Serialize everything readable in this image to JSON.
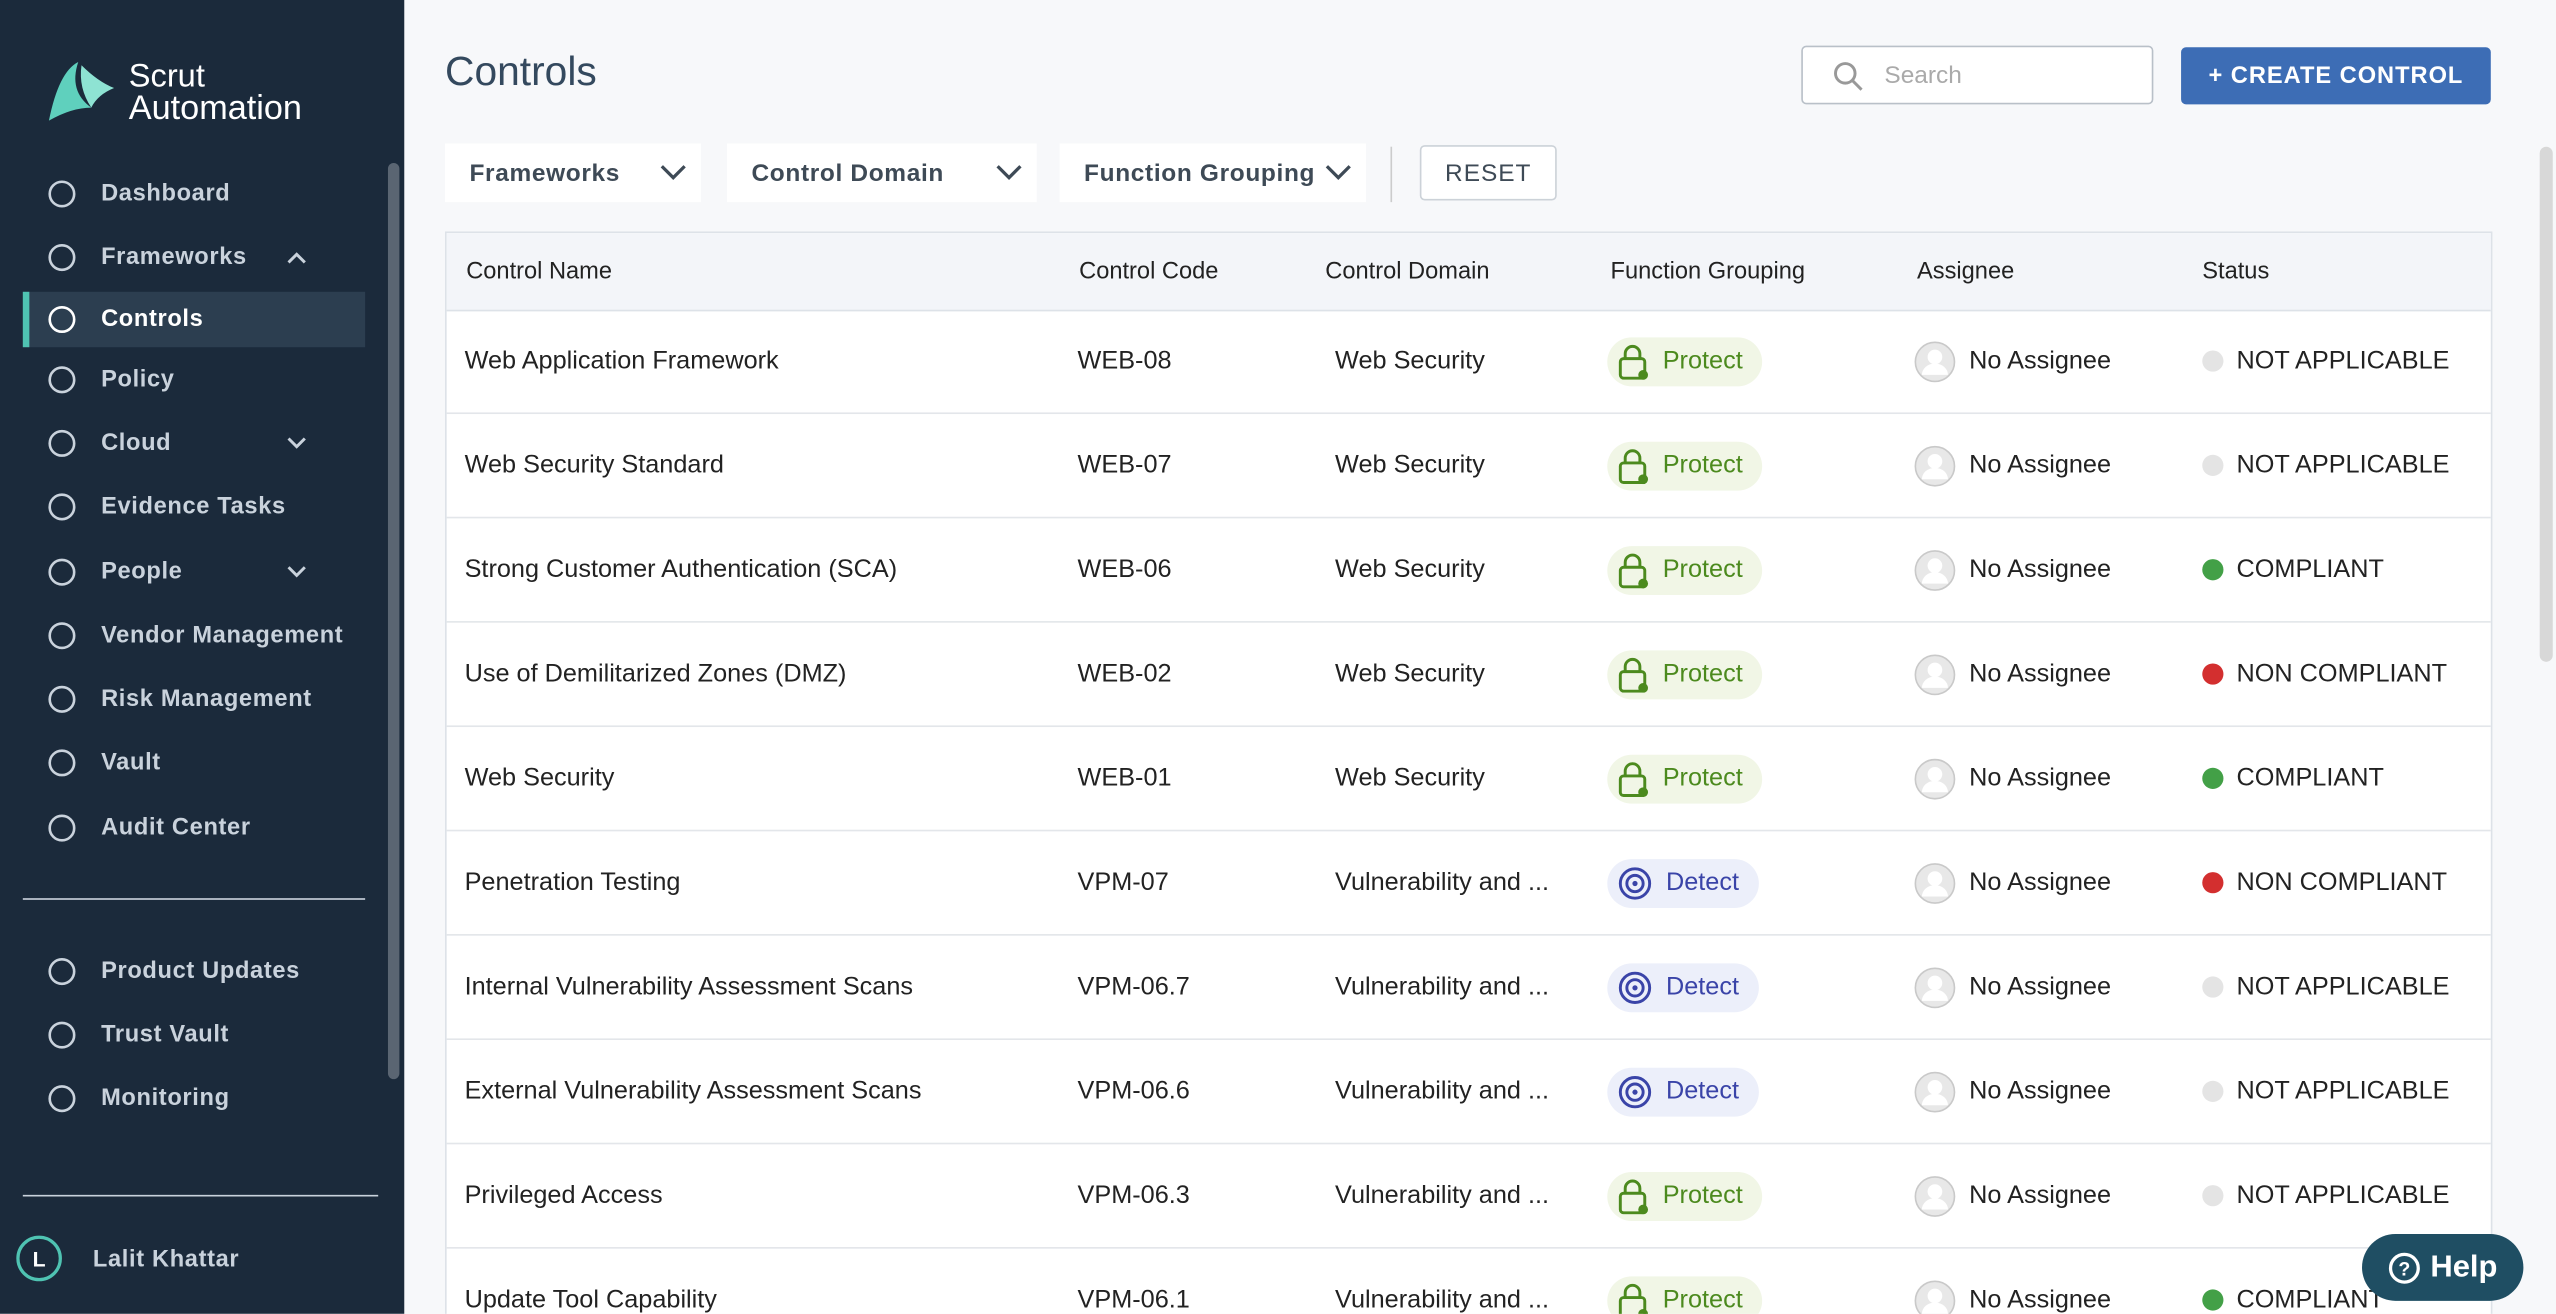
{
  "sidebar": {
    "brand": [
      "Scrut",
      "Automation"
    ],
    "nav": [
      {
        "label": "Dashboard"
      },
      {
        "label": "Frameworks",
        "chevron": "up"
      },
      {
        "label": "Controls",
        "active": true
      },
      {
        "label": "Policy"
      },
      {
        "label": "Cloud",
        "chevron": "down"
      },
      {
        "label": "Evidence Tasks"
      },
      {
        "label": "People",
        "chevron": "down"
      },
      {
        "label": "Vendor Management"
      },
      {
        "label": "Risk Management"
      },
      {
        "label": "Vault"
      },
      {
        "label": "Audit Center"
      }
    ],
    "secondary": [
      {
        "label": "Product Updates"
      },
      {
        "label": "Trust Vault"
      },
      {
        "label": "Monitoring"
      }
    ],
    "user": {
      "initial": "L",
      "name": "Lalit Khattar"
    }
  },
  "header": {
    "title": "Controls",
    "search_placeholder": "Search",
    "create_button": "+ CREATE CONTROL"
  },
  "filters": {
    "items": [
      "Frameworks",
      "Control Domain",
      "Function Grouping"
    ],
    "reset": "RESET"
  },
  "table": {
    "columns": [
      "Control Name",
      "Control Code",
      "Control Domain",
      "Function Grouping",
      "Assignee",
      "Status"
    ],
    "rows": [
      {
        "name": "Web Application Framework",
        "code": "WEB-08",
        "domain": "Web Security",
        "group": "Protect",
        "icon": "lock",
        "assignee": "No Assignee",
        "status": "NOT APPLICABLE",
        "status_color": "#e4e4e4"
      },
      {
        "name": "Web Security Standard",
        "code": "WEB-07",
        "domain": "Web Security",
        "group": "Protect",
        "icon": "lock",
        "assignee": "No Assignee",
        "status": "NOT APPLICABLE",
        "status_color": "#e4e4e4"
      },
      {
        "name": "Strong Customer Authentication (SCA)",
        "code": "WEB-06",
        "domain": "Web Security",
        "group": "Protect",
        "icon": "lock",
        "assignee": "No Assignee",
        "status": "COMPLIANT",
        "status_color": "#43a047"
      },
      {
        "name": "Use of Demilitarized Zones (DMZ)",
        "code": "WEB-02",
        "domain": "Web Security",
        "group": "Protect",
        "icon": "lock",
        "assignee": "No Assignee",
        "status": "NON COMPLIANT",
        "status_color": "#d32f2f"
      },
      {
        "name": "Web Security",
        "code": "WEB-01",
        "domain": "Web Security",
        "group": "Protect",
        "icon": "lock",
        "assignee": "No Assignee",
        "status": "COMPLIANT",
        "status_color": "#43a047"
      },
      {
        "name": "Penetration Testing",
        "code": "VPM-07",
        "domain": "Vulnerability and ...",
        "group": "Detect",
        "icon": "target",
        "assignee": "No Assignee",
        "status": "NON COMPLIANT",
        "status_color": "#d32f2f"
      },
      {
        "name": "Internal Vulnerability Assessment Scans",
        "code": "VPM-06.7",
        "domain": "Vulnerability and ...",
        "group": "Detect",
        "icon": "target",
        "assignee": "No Assignee",
        "status": "NOT APPLICABLE",
        "status_color": "#e4e4e4"
      },
      {
        "name": "External Vulnerability Assessment Scans",
        "code": "VPM-06.6",
        "domain": "Vulnerability and ...",
        "group": "Detect",
        "icon": "target",
        "assignee": "No Assignee",
        "status": "NOT APPLICABLE",
        "status_color": "#e4e4e4"
      },
      {
        "name": "Privileged Access",
        "code": "VPM-06.3",
        "domain": "Vulnerability and ...",
        "group": "Protect",
        "icon": "lock",
        "assignee": "No Assignee",
        "status": "NOT APPLICABLE",
        "status_color": "#e4e4e4"
      },
      {
        "name": "Update Tool Capability",
        "code": "VPM-06.1",
        "domain": "Vulnerability and ...",
        "group": "Protect",
        "icon": "lock",
        "assignee": "No Assignee",
        "status": "COMPLIANT",
        "status_color": "#43a047"
      }
    ]
  },
  "help": "Help"
}
